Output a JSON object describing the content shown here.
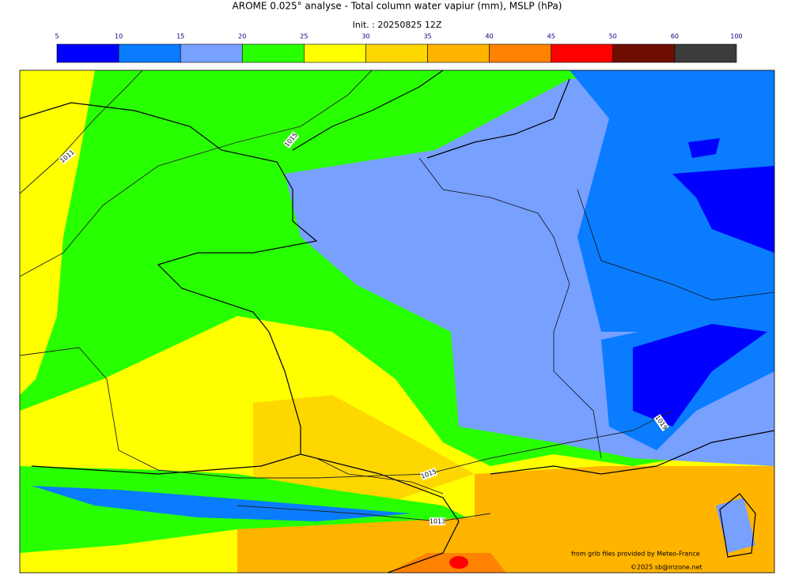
{
  "header": {
    "title": "AROME 0.025° analyse - Total column water vapiur (mm), MSLP (hPa)",
    "init": "Init. : 20250825 12Z"
  },
  "colorbar": {
    "levels": [
      5,
      10,
      15,
      20,
      25,
      30,
      35,
      40,
      45,
      50,
      60,
      100
    ],
    "colors": [
      "#0000ff",
      "#0a7cff",
      "#78a0ff",
      "#28ff00",
      "#ffff00",
      "#ffd700",
      "#ffb400",
      "#ff8200",
      "#ff0000",
      "#6e0e00",
      "#3c3c3c"
    ]
  },
  "isobar_labels": [
    1011,
    1015,
    1015,
    1019,
    1013
  ],
  "credits": [
    "from grib files provided by Meteo-France",
    "©2025 sb@irizone.net"
  ]
}
